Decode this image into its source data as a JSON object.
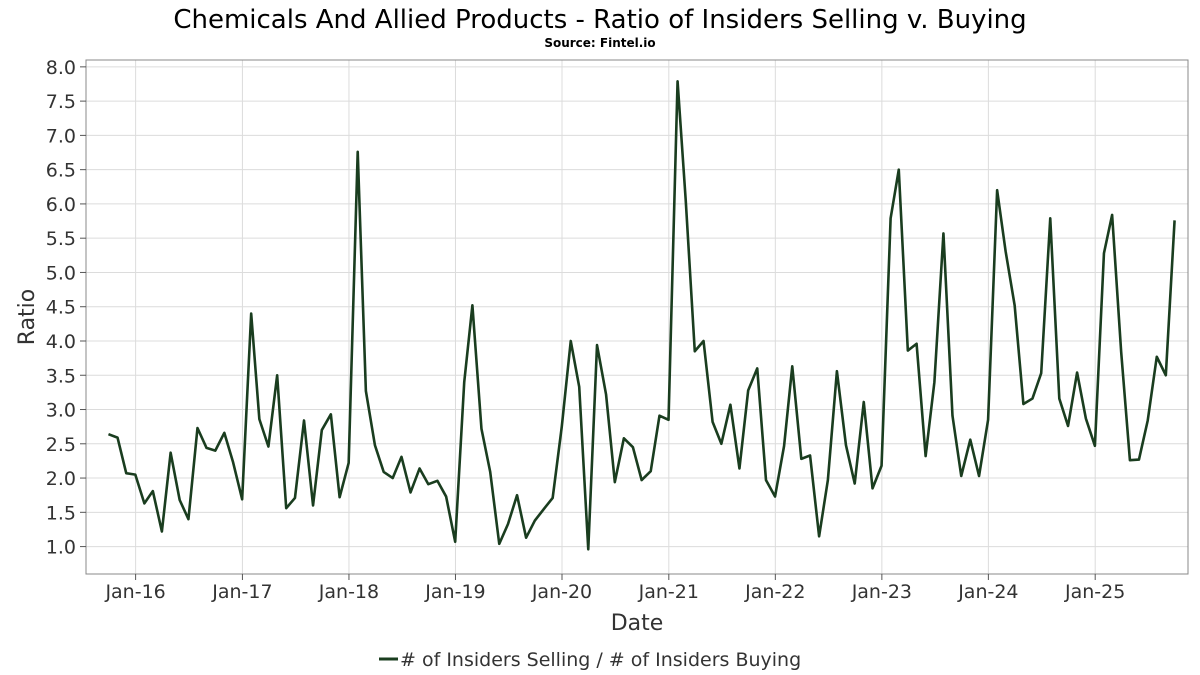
{
  "chart_data": {
    "type": "line",
    "title": "Chemicals And Allied Products - Ratio of Insiders Selling v. Buying",
    "subtitle": "Source: Fintel.io",
    "xlabel": "Date",
    "ylabel": "Ratio",
    "grid": true,
    "legend_position": "bottom",
    "x_tick_labels": [
      "Jan-16",
      "Jan-17",
      "Jan-18",
      "Jan-19",
      "Jan-20",
      "Jan-21",
      "Jan-22",
      "Jan-23",
      "Jan-24",
      "Jan-25"
    ],
    "y_tick_labels": [
      "1.0",
      "1.5",
      "2.0",
      "2.5",
      "3.0",
      "3.5",
      "4.0",
      "4.5",
      "5.0",
      "5.5",
      "6.0",
      "6.5",
      "7.0",
      "7.5",
      "8.0"
    ],
    "x_range": [
      "2015-07-15",
      "2025-11-15"
    ],
    "ylim": [
      0.6,
      8.1
    ],
    "series": [
      {
        "name": "# of Insiders Selling / # of Insiders Buying",
        "color": "#1a3d1f",
        "points": [
          [
            "2015-09-30",
            2.64
          ],
          [
            "2015-10-31",
            2.59
          ],
          [
            "2015-11-30",
            2.07
          ],
          [
            "2015-12-31",
            2.05
          ],
          [
            "2016-01-31",
            1.63
          ],
          [
            "2016-02-29",
            1.81
          ],
          [
            "2016-03-31",
            1.22
          ],
          [
            "2016-04-30",
            2.37
          ],
          [
            "2016-05-31",
            1.68
          ],
          [
            "2016-06-30",
            1.4
          ],
          [
            "2016-07-31",
            2.73
          ],
          [
            "2016-08-31",
            2.44
          ],
          [
            "2016-09-30",
            2.4
          ],
          [
            "2016-10-31",
            2.66
          ],
          [
            "2016-11-30",
            2.23
          ],
          [
            "2016-12-31",
            1.69
          ],
          [
            "2017-01-31",
            4.4
          ],
          [
            "2017-02-28",
            2.86
          ],
          [
            "2017-03-31",
            2.46
          ],
          [
            "2017-04-30",
            3.5
          ],
          [
            "2017-05-31",
            1.56
          ],
          [
            "2017-06-30",
            1.71
          ],
          [
            "2017-07-31",
            2.84
          ],
          [
            "2017-08-31",
            1.6
          ],
          [
            "2017-09-30",
            2.7
          ],
          [
            "2017-10-31",
            2.93
          ],
          [
            "2017-11-30",
            1.72
          ],
          [
            "2017-12-31",
            2.22
          ],
          [
            "2018-01-31",
            6.76
          ],
          [
            "2018-02-28",
            3.27
          ],
          [
            "2018-03-31",
            2.48
          ],
          [
            "2018-04-30",
            2.09
          ],
          [
            "2018-05-31",
            2.0
          ],
          [
            "2018-06-30",
            2.31
          ],
          [
            "2018-07-31",
            1.79
          ],
          [
            "2018-08-31",
            2.14
          ],
          [
            "2018-09-30",
            1.91
          ],
          [
            "2018-10-31",
            1.96
          ],
          [
            "2018-11-30",
            1.73
          ],
          [
            "2018-12-31",
            1.07
          ],
          [
            "2019-01-31",
            3.4
          ],
          [
            "2019-02-28",
            4.52
          ],
          [
            "2019-03-31",
            2.72
          ],
          [
            "2019-04-30",
            2.09
          ],
          [
            "2019-05-31",
            1.04
          ],
          [
            "2019-06-30",
            1.33
          ],
          [
            "2019-07-31",
            1.75
          ],
          [
            "2019-08-31",
            1.13
          ],
          [
            "2019-09-30",
            1.38
          ],
          [
            "2019-10-31",
            1.55
          ],
          [
            "2019-11-30",
            1.71
          ],
          [
            "2019-12-31",
            2.74
          ],
          [
            "2020-01-31",
            4.0
          ],
          [
            "2020-02-29",
            3.33
          ],
          [
            "2020-03-31",
            0.96
          ],
          [
            "2020-04-30",
            3.94
          ],
          [
            "2020-05-31",
            3.22
          ],
          [
            "2020-06-30",
            1.94
          ],
          [
            "2020-07-31",
            2.58
          ],
          [
            "2020-08-31",
            2.45
          ],
          [
            "2020-09-30",
            1.97
          ],
          [
            "2020-10-31",
            2.1
          ],
          [
            "2020-11-30",
            2.91
          ],
          [
            "2020-12-31",
            2.85
          ],
          [
            "2021-01-31",
            7.79
          ],
          [
            "2021-02-28",
            6.05
          ],
          [
            "2021-03-31",
            3.85
          ],
          [
            "2021-04-30",
            4.0
          ],
          [
            "2021-05-31",
            2.82
          ],
          [
            "2021-06-30",
            2.5
          ],
          [
            "2021-07-31",
            3.07
          ],
          [
            "2021-08-31",
            2.14
          ],
          [
            "2021-09-30",
            3.28
          ],
          [
            "2021-10-31",
            3.6
          ],
          [
            "2021-11-30",
            1.97
          ],
          [
            "2021-12-31",
            1.73
          ],
          [
            "2022-01-31",
            2.47
          ],
          [
            "2022-02-28",
            3.63
          ],
          [
            "2022-03-31",
            2.28
          ],
          [
            "2022-04-30",
            2.33
          ],
          [
            "2022-05-31",
            1.15
          ],
          [
            "2022-06-30",
            1.97
          ],
          [
            "2022-07-31",
            3.56
          ],
          [
            "2022-08-31",
            2.48
          ],
          [
            "2022-09-30",
            1.92
          ],
          [
            "2022-10-31",
            3.11
          ],
          [
            "2022-11-30",
            1.85
          ],
          [
            "2022-12-31",
            2.18
          ],
          [
            "2023-01-31",
            5.79
          ],
          [
            "2023-02-28",
            6.5
          ],
          [
            "2023-03-31",
            3.86
          ],
          [
            "2023-04-30",
            3.96
          ],
          [
            "2023-05-31",
            2.32
          ],
          [
            "2023-06-30",
            3.4
          ],
          [
            "2023-07-31",
            5.57
          ],
          [
            "2023-08-31",
            2.91
          ],
          [
            "2023-09-30",
            2.03
          ],
          [
            "2023-10-31",
            2.56
          ],
          [
            "2023-11-30",
            2.03
          ],
          [
            "2023-12-31",
            2.85
          ],
          [
            "2024-01-31",
            6.2
          ],
          [
            "2024-02-29",
            5.31
          ],
          [
            "2024-03-31",
            4.52
          ],
          [
            "2024-04-30",
            3.08
          ],
          [
            "2024-05-31",
            3.16
          ],
          [
            "2024-06-30",
            3.53
          ],
          [
            "2024-07-31",
            5.79
          ],
          [
            "2024-08-31",
            3.16
          ],
          [
            "2024-09-30",
            2.76
          ],
          [
            "2024-10-31",
            3.54
          ],
          [
            "2024-11-30",
            2.87
          ],
          [
            "2024-12-31",
            2.47
          ],
          [
            "2025-01-31",
            5.28
          ],
          [
            "2025-02-28",
            5.84
          ],
          [
            "2025-03-31",
            3.84
          ],
          [
            "2025-04-30",
            2.26
          ],
          [
            "2025-05-31",
            2.27
          ],
          [
            "2025-06-30",
            2.84
          ],
          [
            "2025-07-31",
            3.77
          ],
          [
            "2025-08-31",
            3.5
          ],
          [
            "2025-09-30",
            5.76
          ]
        ]
      }
    ]
  }
}
